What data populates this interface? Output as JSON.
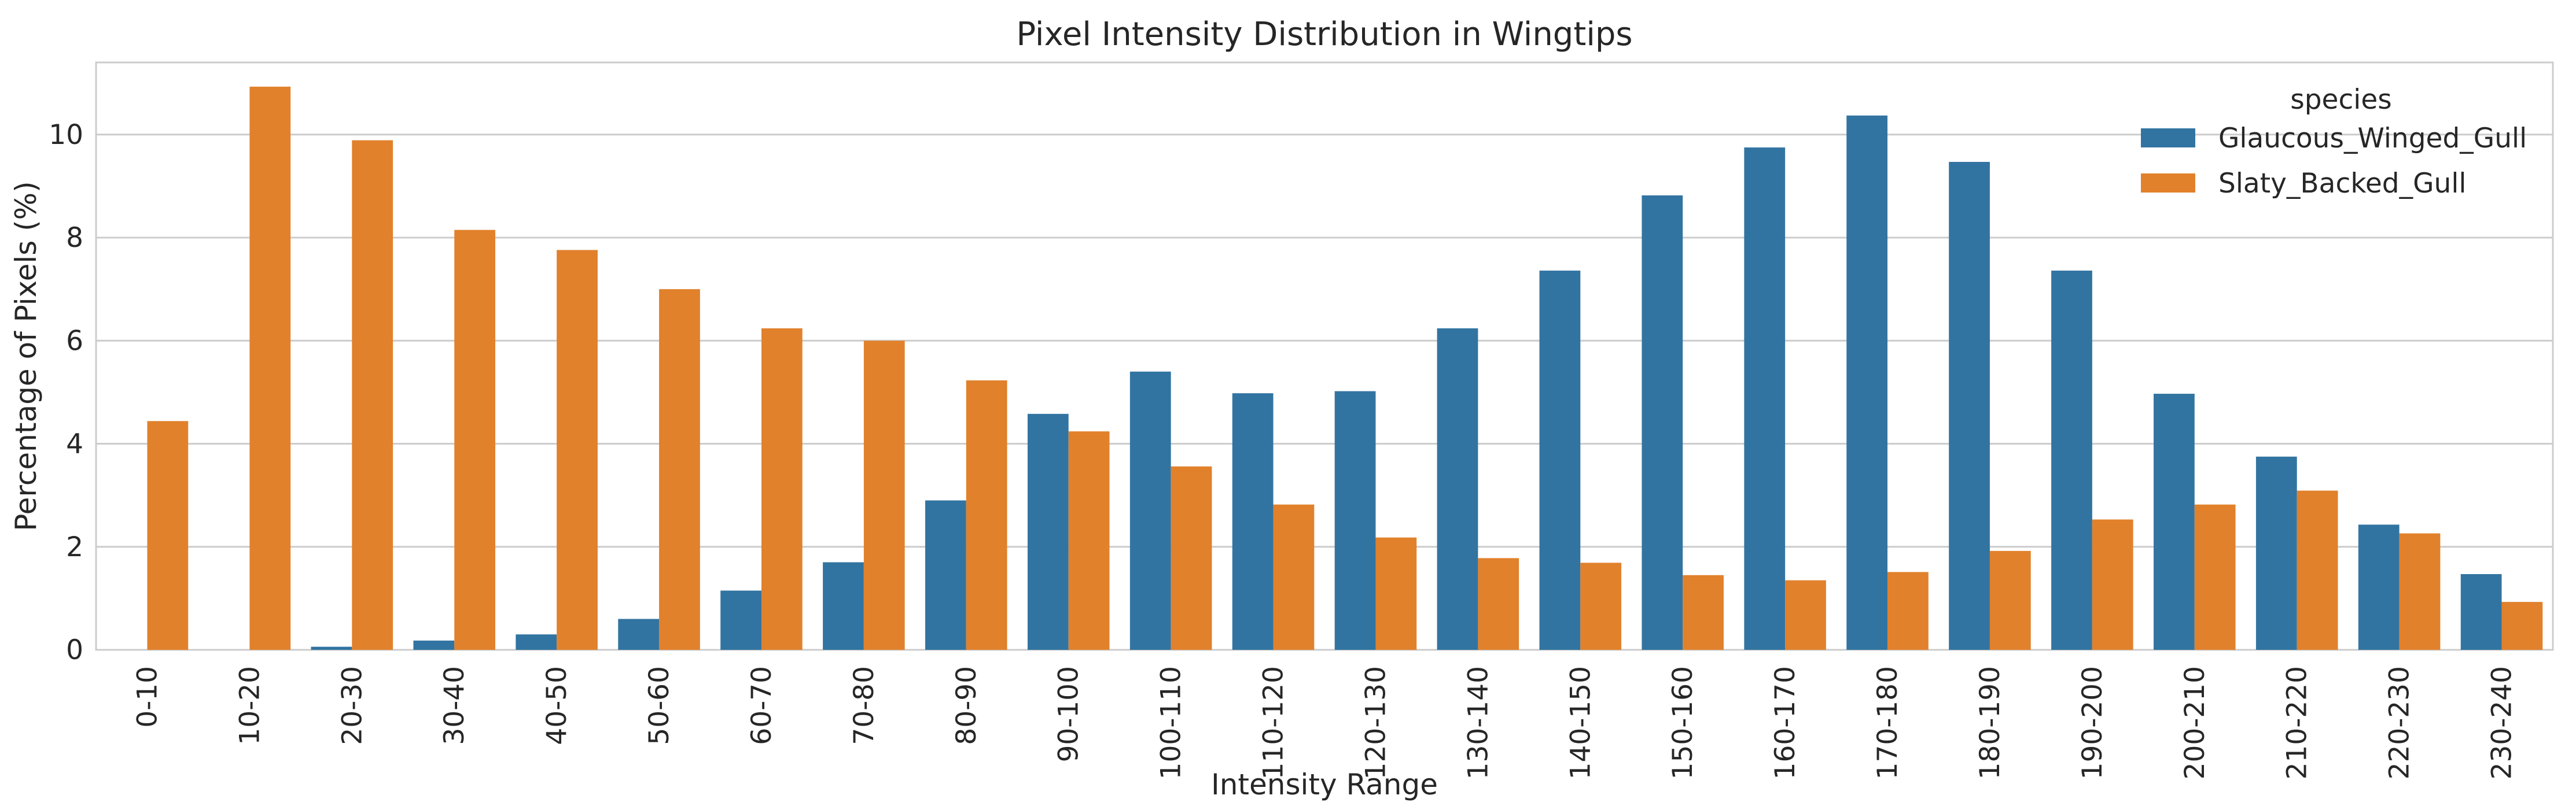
{
  "chart_data": {
    "type": "bar",
    "title": "Pixel Intensity Distribution in Wingtips",
    "xlabel": "Intensity Range",
    "ylabel": "Percentage of Pixels (%)",
    "ylim": [
      0,
      11.4
    ],
    "yticks": [
      0,
      2,
      4,
      6,
      8,
      10
    ],
    "grid": true,
    "legend": {
      "title": "species",
      "position": "top-right"
    },
    "categories": [
      "0-10",
      "10-20",
      "20-30",
      "30-40",
      "40-50",
      "50-60",
      "60-70",
      "70-80",
      "80-90",
      "90-100",
      "100-110",
      "110-120",
      "120-130",
      "130-140",
      "140-150",
      "150-160",
      "160-170",
      "170-180",
      "180-190",
      "190-200",
      "200-210",
      "210-220",
      "220-230",
      "230-240"
    ],
    "series": [
      {
        "name": "Glaucous_Winged_Gull",
        "color": "#3274a1",
        "values": [
          0,
          0,
          0.06,
          0.18,
          0.3,
          0.6,
          1.15,
          1.7,
          2.9,
          4.58,
          5.4,
          4.98,
          5.02,
          6.24,
          7.36,
          8.82,
          9.75,
          10.37,
          9.47,
          7.36,
          4.97,
          3.75,
          2.43,
          1.47
        ]
      },
      {
        "name": "Slaty_Backed_Gull",
        "color": "#e1812c",
        "values": [
          4.44,
          10.93,
          9.89,
          8.15,
          7.76,
          7.0,
          6.24,
          6.0,
          5.23,
          4.24,
          3.56,
          2.82,
          2.18,
          1.78,
          1.69,
          1.45,
          1.35,
          1.51,
          1.92,
          2.53,
          2.82,
          3.09,
          2.26,
          0.93
        ]
      }
    ]
  }
}
